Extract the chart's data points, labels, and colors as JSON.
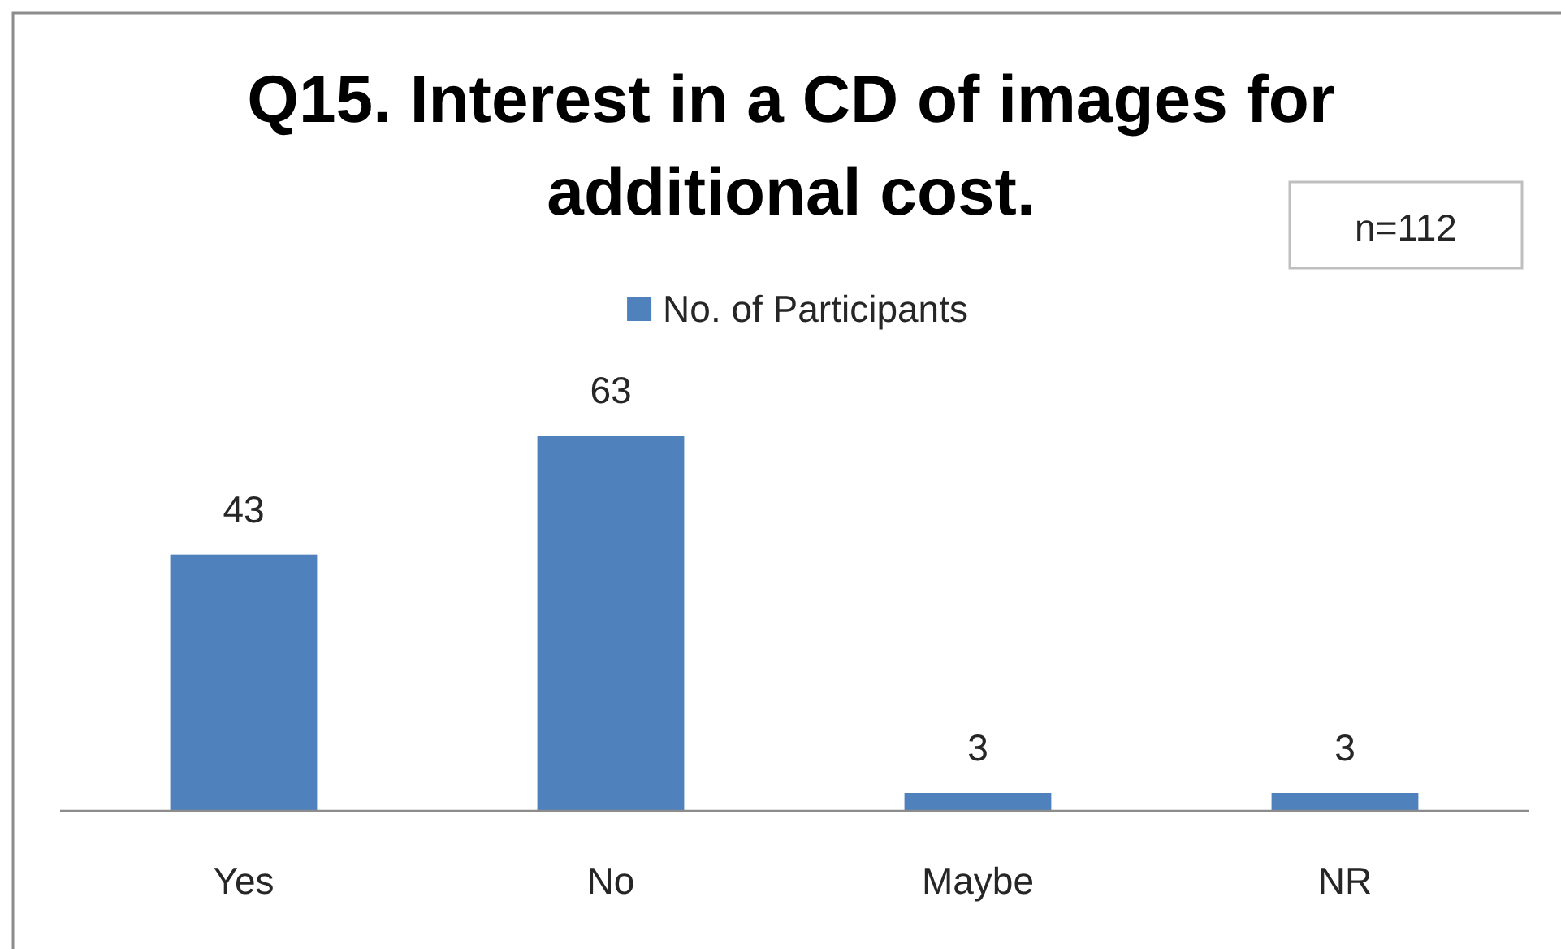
{
  "chart_data": {
    "type": "bar",
    "title": "Q15. Interest in a CD of images for additional cost.",
    "categories": [
      "Yes",
      "No",
      "Maybe",
      "NR"
    ],
    "series": [
      {
        "name": "No. of Participants",
        "color": "#4f81bd",
        "values": [
          43,
          63,
          3,
          3
        ]
      }
    ],
    "tick_labels": "x",
    "data_labels": true,
    "legend": "top",
    "annotations": [
      "n=112"
    ]
  }
}
